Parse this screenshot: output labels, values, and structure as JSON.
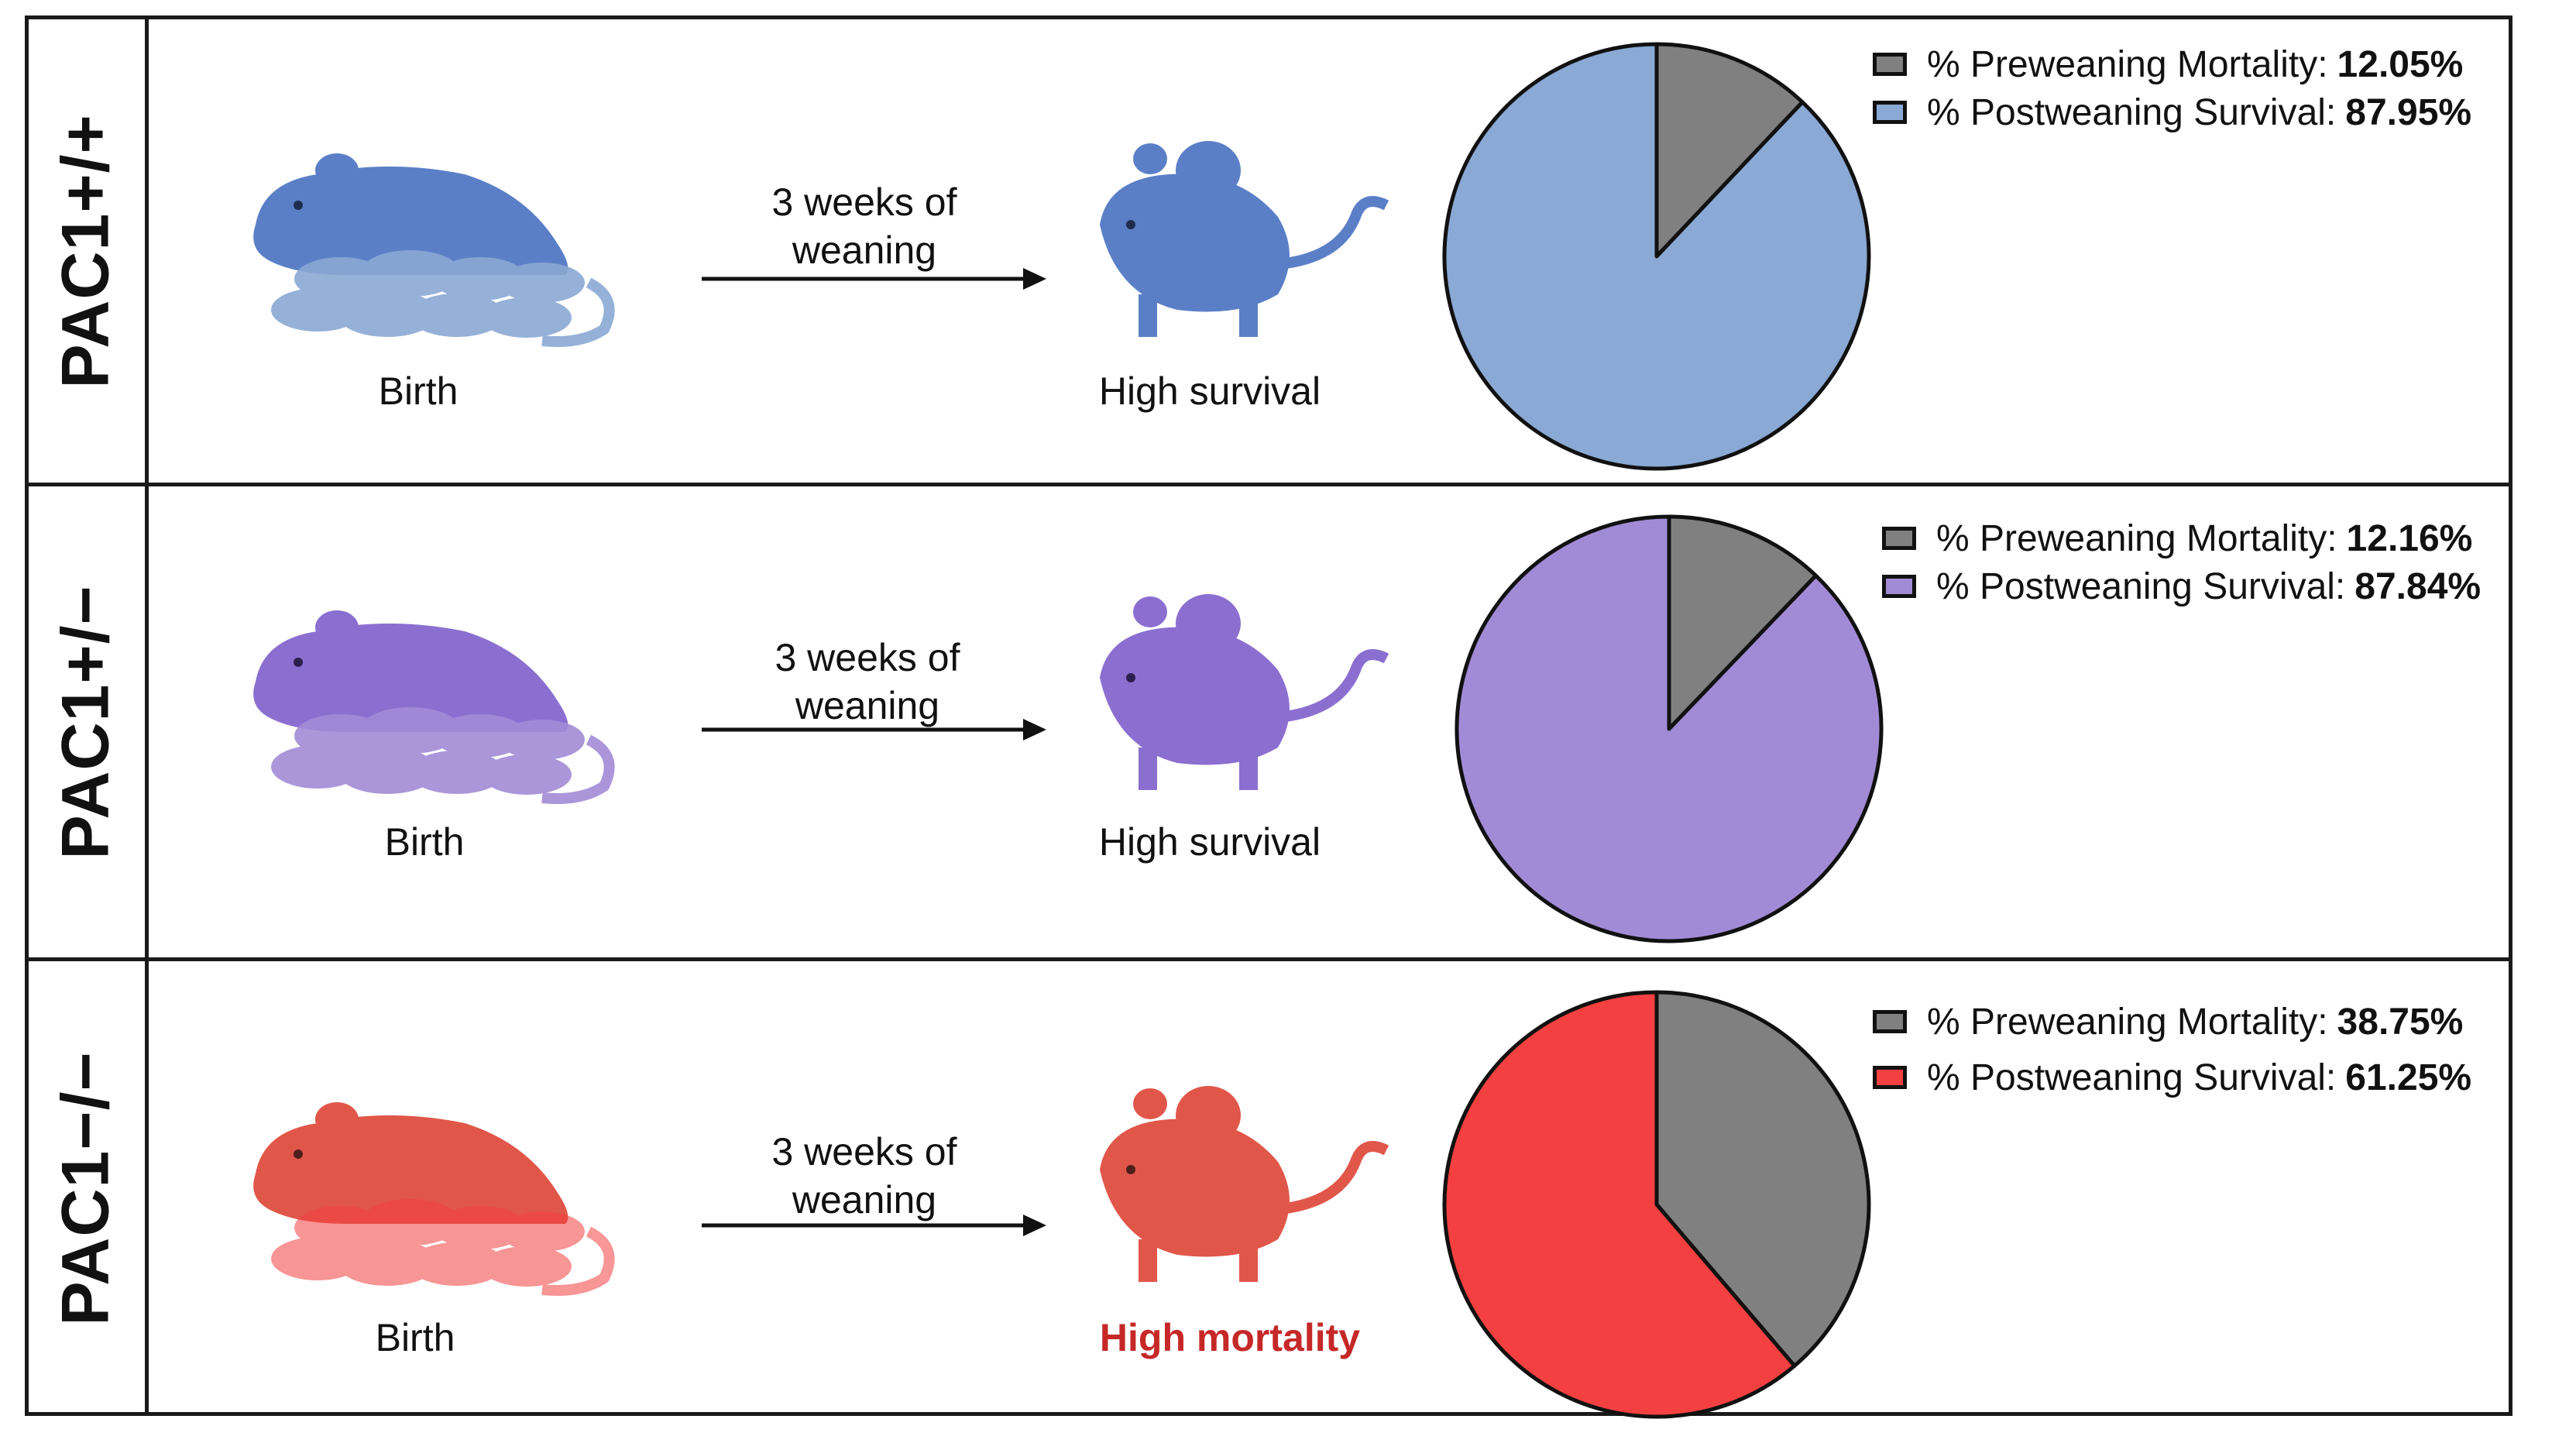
{
  "colors": {
    "wt": "#8aa9d4",
    "het": "#a28bd6",
    "ko": "#f44040",
    "mortality": "#808080",
    "wt_mouse": "#5b7fc7",
    "het_mouse": "#8b6fd0",
    "ko_mouse": "#e0574a",
    "ko_text": "#c62828"
  },
  "rows": [
    {
      "genotype": "PAC1+/+",
      "birth_label": "Birth",
      "arrow_label_line1": "3 weeks of",
      "arrow_label_line2": "weaning",
      "outcome_label": "High survival"
    },
    {
      "genotype": "PAC1+/−",
      "birth_label": "Birth",
      "arrow_label_line1": "3 weeks of",
      "arrow_label_line2": "weaning",
      "outcome_label": "High survival"
    },
    {
      "genotype": "PAC1−/−",
      "birth_label": "Birth",
      "arrow_label_line1": "3 weeks of",
      "arrow_label_line2": "weaning",
      "outcome_label": "High mortality"
    }
  ],
  "chart_data": [
    {
      "type": "pie",
      "title": "PAC1+/+",
      "labels": [
        "% Preweaning Mortality:",
        "% Postweaning Survival:"
      ],
      "value_labels": [
        "12.05%",
        "87.95%"
      ],
      "values": [
        12.05,
        87.95
      ]
    },
    {
      "type": "pie",
      "title": "PAC1+/−",
      "labels": [
        "% Preweaning Mortality:",
        "% Postweaning Survival:"
      ],
      "value_labels": [
        "12.16%",
        "87.84%"
      ],
      "values": [
        12.16,
        87.84
      ]
    },
    {
      "type": "pie",
      "title": "PAC1−/−",
      "labels": [
        "% Preweaning Mortality:",
        "% Postweaning Survival:"
      ],
      "value_labels": [
        "38.75%",
        "61.25%"
      ],
      "values": [
        38.75,
        61.25
      ]
    }
  ]
}
